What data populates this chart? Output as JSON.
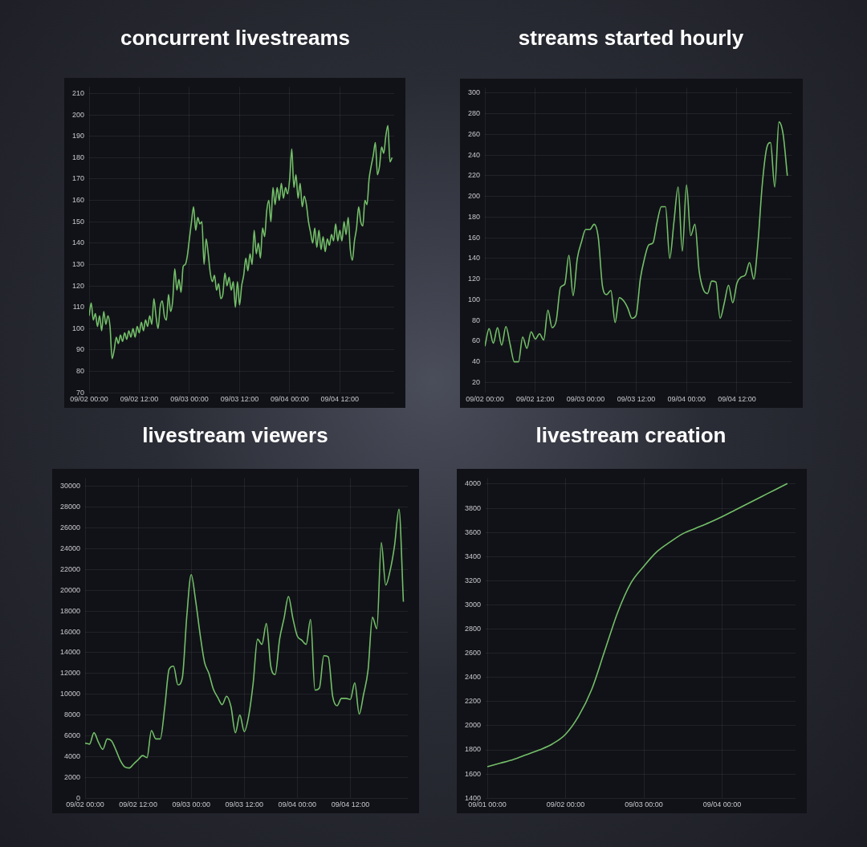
{
  "chart_data": [
    {
      "type": "line",
      "title": "concurrent livestreams",
      "grid": true,
      "x": [
        "--09-02T00:00",
        "--09-02T00:30",
        "--09-02T01:00",
        "--09-02T01:30",
        "--09-02T02:00",
        "--09-02T02:30",
        "--09-02T03:00",
        "--09-02T03:30",
        "--09-02T04:00",
        "--09-02T04:30",
        "--09-02T05:00",
        "--09-02T05:30",
        "--09-02T06:00",
        "--09-02T06:30",
        "--09-02T07:00",
        "--09-02T07:30",
        "--09-02T08:00",
        "--09-02T08:30",
        "--09-02T09:00",
        "--09-02T09:30",
        "--09-02T10:00",
        "--09-02T10:30",
        "--09-02T11:00",
        "--09-02T11:30",
        "--09-02T12:00",
        "--09-02T12:30",
        "--09-02T13:00",
        "--09-02T13:30",
        "--09-02T14:00",
        "--09-02T14:30",
        "--09-02T15:00",
        "--09-02T15:30",
        "--09-02T16:00",
        "--09-02T16:30",
        "--09-02T17:00",
        "--09-02T17:30",
        "--09-02T18:00",
        "--09-02T18:30",
        "--09-02T19:00",
        "--09-02T19:30",
        "--09-02T20:00",
        "--09-02T20:30",
        "--09-02T21:00",
        "--09-02T21:30",
        "--09-02T22:00",
        "--09-02T22:30",
        "--09-02T23:00",
        "--09-02T23:30",
        "--09-03T00:00",
        "--09-03T00:30",
        "--09-03T01:00",
        "--09-03T01:30",
        "--09-03T02:00",
        "--09-03T02:30",
        "--09-03T03:00",
        "--09-03T03:30",
        "--09-03T04:00",
        "--09-03T04:30",
        "--09-03T05:00",
        "--09-03T05:30",
        "--09-03T06:00",
        "--09-03T06:30",
        "--09-03T07:00",
        "--09-03T07:30",
        "--09-03T08:00",
        "--09-03T08:30",
        "--09-03T09:00",
        "--09-03T09:30",
        "--09-03T10:00",
        "--09-03T10:30",
        "--09-03T11:00",
        "--09-03T11:30",
        "--09-03T12:00",
        "--09-03T12:30",
        "--09-03T13:00",
        "--09-03T13:30",
        "--09-03T14:00",
        "--09-03T14:30",
        "--09-03T15:00",
        "--09-03T15:30",
        "--09-03T16:00",
        "--09-03T16:30",
        "--09-03T17:00",
        "--09-03T17:30",
        "--09-03T18:00",
        "--09-03T18:30",
        "--09-03T19:00",
        "--09-03T19:30",
        "--09-03T20:00",
        "--09-03T20:30",
        "--09-03T21:00",
        "--09-03T21:30",
        "--09-03T22:00",
        "--09-03T22:30",
        "--09-03T23:00",
        "--09-03T23:30",
        "--09-04T00:00",
        "--09-04T00:30",
        "--09-04T01:00",
        "--09-04T01:30",
        "--09-04T02:00",
        "--09-04T02:30",
        "--09-04T03:00",
        "--09-04T03:30",
        "--09-04T04:00",
        "--09-04T04:30",
        "--09-04T05:00",
        "--09-04T05:30",
        "--09-04T06:00",
        "--09-04T06:30",
        "--09-04T07:00",
        "--09-04T07:30",
        "--09-04T08:00",
        "--09-04T08:30",
        "--09-04T09:00",
        "--09-04T09:30",
        "--09-04T10:00",
        "--09-04T10:30",
        "--09-04T11:00",
        "--09-04T11:30",
        "--09-04T12:00",
        "--09-04T12:30",
        "--09-04T13:00",
        "--09-04T13:30",
        "--09-04T14:00",
        "--09-04T14:30",
        "--09-04T15:00",
        "--09-04T15:30",
        "--09-04T16:00",
        "--09-04T16:30",
        "--09-04T17:00",
        "--09-04T17:30",
        "--09-04T18:00",
        "--09-04T18:30",
        "--09-04T19:00",
        "--09-04T19:30",
        "--09-04T20:00",
        "--09-04T20:30",
        "--09-04T21:00",
        "--09-04T21:30",
        "--09-04T22:00",
        "--09-04T22:30",
        "--09-04T23:00",
        "--09-04T23:30",
        "--09-05T00:00",
        "--09-05T00:30"
      ],
      "series": [
        {
          "color": "#73bf69",
          "values": [
            106,
            112,
            104,
            107,
            101,
            106,
            99,
            108,
            102,
            106,
            101,
            86,
            90,
            96,
            93,
            97,
            94,
            98,
            95,
            99,
            96,
            100,
            96,
            101,
            98,
            103,
            99,
            104,
            101,
            106,
            102,
            114,
            106,
            100,
            110,
            113,
            106,
            104,
            116,
            108,
            113,
            128,
            118,
            123,
            117,
            129,
            130,
            134,
            142,
            150,
            157,
            146,
            152,
            149,
            150,
            130,
            142,
            135,
            126,
            122,
            125,
            118,
            121,
            114,
            116,
            126,
            120,
            124,
            118,
            122,
            110,
            122,
            111,
            120,
            125,
            133,
            127,
            135,
            130,
            146,
            135,
            140,
            133,
            147,
            143,
            155,
            160,
            150,
            166,
            158,
            166,
            160,
            168,
            161,
            166,
            163,
            170,
            184,
            166,
            172,
            161,
            168,
            157,
            162,
            158,
            150,
            145,
            140,
            147,
            138,
            146,
            137,
            143,
            136,
            142,
            139,
            144,
            141,
            149,
            141,
            146,
            141,
            150,
            144,
            152,
            137,
            132,
            141,
            147,
            157,
            150,
            148,
            160,
            158,
            170,
            176,
            181,
            187,
            172,
            176,
            185,
            182,
            190,
            195,
            178,
            180
          ]
        }
      ],
      "xlim": [
        "--09-02T00:00",
        "--09-05T01:00"
      ],
      "xticks": [
        {
          "value": "--09-02T00:00",
          "label": "09/02 00:00"
        },
        {
          "value": "--09-02T12:00",
          "label": "09/02 12:00"
        },
        {
          "value": "--09-03T00:00",
          "label": "09/03 00:00"
        },
        {
          "value": "--09-03T12:00",
          "label": "09/03 12:00"
        },
        {
          "value": "--09-04T00:00",
          "label": "09/04 00:00"
        },
        {
          "value": "--09-04T12:00",
          "label": "09/04 12:00"
        }
      ],
      "ylim": [
        70,
        213
      ],
      "yticks": [
        70,
        80,
        90,
        100,
        110,
        120,
        130,
        140,
        150,
        160,
        170,
        180,
        190,
        200,
        210
      ]
    },
    {
      "type": "line",
      "title": "streams started hourly",
      "grid": true,
      "x": [
        "--09-02T00:00",
        "--09-02T01:00",
        "--09-02T02:00",
        "--09-02T03:00",
        "--09-02T04:00",
        "--09-02T05:00",
        "--09-02T06:00",
        "--09-02T07:00",
        "--09-02T08:00",
        "--09-02T09:00",
        "--09-02T10:00",
        "--09-02T11:00",
        "--09-02T12:00",
        "--09-02T13:00",
        "--09-02T14:00",
        "--09-02T15:00",
        "--09-02T16:00",
        "--09-02T17:00",
        "--09-02T18:00",
        "--09-02T19:00",
        "--09-02T20:00",
        "--09-02T21:00",
        "--09-02T22:00",
        "--09-02T23:00",
        "--09-03T00:00",
        "--09-03T01:00",
        "--09-03T02:00",
        "--09-03T03:00",
        "--09-03T04:00",
        "--09-03T05:00",
        "--09-03T06:00",
        "--09-03T07:00",
        "--09-03T08:00",
        "--09-03T09:00",
        "--09-03T10:00",
        "--09-03T11:00",
        "--09-03T12:00",
        "--09-03T13:00",
        "--09-03T14:00",
        "--09-03T15:00",
        "--09-03T16:00",
        "--09-03T17:00",
        "--09-03T18:00",
        "--09-03T19:00",
        "--09-03T20:00",
        "--09-03T21:00",
        "--09-03T22:00",
        "--09-03T23:00",
        "--09-04T00:00",
        "--09-04T01:00",
        "--09-04T02:00",
        "--09-04T03:00",
        "--09-04T04:00",
        "--09-04T05:00",
        "--09-04T06:00",
        "--09-04T07:00",
        "--09-04T08:00",
        "--09-04T09:00",
        "--09-04T10:00",
        "--09-04T11:00",
        "--09-04T12:00",
        "--09-04T13:00",
        "--09-04T14:00",
        "--09-04T15:00",
        "--09-04T16:00",
        "--09-04T17:00",
        "--09-04T18:00",
        "--09-04T19:00",
        "--09-04T20:00",
        "--09-04T21:00",
        "--09-04T22:00",
        "--09-04T23:00",
        "--09-05T00:00"
      ],
      "series": [
        {
          "color": "#73bf69",
          "values": [
            55,
            72,
            58,
            73,
            56,
            74,
            57,
            40,
            40,
            64,
            53,
            69,
            62,
            67,
            61,
            90,
            73,
            80,
            112,
            115,
            143,
            104,
            140,
            156,
            168,
            168,
            173,
            160,
            113,
            105,
            109,
            78,
            102,
            99,
            92,
            82,
            85,
            120,
            140,
            153,
            155,
            175,
            190,
            190,
            140,
            175,
            209,
            147,
            211,
            162,
            173,
            128,
            110,
            106,
            118,
            117,
            82,
            97,
            114,
            97,
            116,
            122,
            124,
            136,
            120,
            155,
            210,
            245,
            252,
            209,
            272,
            260,
            220
          ]
        }
      ],
      "xlim": [
        "--09-02T00:00",
        "--09-05T01:00"
      ],
      "xticks": [
        {
          "value": "--09-02T00:00",
          "label": "09/02 00:00"
        },
        {
          "value": "--09-02T12:00",
          "label": "09/02 12:00"
        },
        {
          "value": "--09-03T00:00",
          "label": "09/03 00:00"
        },
        {
          "value": "--09-03T12:00",
          "label": "09/03 12:00"
        },
        {
          "value": "--09-04T00:00",
          "label": "09/04 00:00"
        },
        {
          "value": "--09-04T12:00",
          "label": "09/04 12:00"
        }
      ],
      "ylim": [
        10,
        305
      ],
      "yticks": [
        20,
        40,
        60,
        80,
        100,
        120,
        140,
        160,
        180,
        200,
        220,
        240,
        260,
        280,
        300
      ]
    },
    {
      "type": "line",
      "title": "livestream viewers",
      "grid": true,
      "x": [
        "--09-02T00:00",
        "--09-02T01:00",
        "--09-02T02:00",
        "--09-02T03:00",
        "--09-02T04:00",
        "--09-02T05:00",
        "--09-02T06:00",
        "--09-02T07:00",
        "--09-02T08:00",
        "--09-02T09:00",
        "--09-02T10:00",
        "--09-02T11:00",
        "--09-02T12:00",
        "--09-02T13:00",
        "--09-02T14:00",
        "--09-02T15:00",
        "--09-02T16:00",
        "--09-02T17:00",
        "--09-02T18:00",
        "--09-02T19:00",
        "--09-02T20:00",
        "--09-02T21:00",
        "--09-02T22:00",
        "--09-02T23:00",
        "--09-03T00:00",
        "--09-03T01:00",
        "--09-03T02:00",
        "--09-03T03:00",
        "--09-03T04:00",
        "--09-03T05:00",
        "--09-03T06:00",
        "--09-03T07:00",
        "--09-03T08:00",
        "--09-03T09:00",
        "--09-03T10:00",
        "--09-03T11:00",
        "--09-03T12:00",
        "--09-03T13:00",
        "--09-03T14:00",
        "--09-03T15:00",
        "--09-03T16:00",
        "--09-03T17:00",
        "--09-03T18:00",
        "--09-03T19:00",
        "--09-03T20:00",
        "--09-03T21:00",
        "--09-03T22:00",
        "--09-03T23:00",
        "--09-04T00:00",
        "--09-04T01:00",
        "--09-04T02:00",
        "--09-04T03:00",
        "--09-04T04:00",
        "--09-04T05:00",
        "--09-04T06:00",
        "--09-04T07:00",
        "--09-04T08:00",
        "--09-04T09:00",
        "--09-04T10:00",
        "--09-04T11:00",
        "--09-04T12:00",
        "--09-04T13:00",
        "--09-04T14:00",
        "--09-04T15:00",
        "--09-04T16:00",
        "--09-04T17:00",
        "--09-04T18:00",
        "--09-04T19:00",
        "--09-04T20:00",
        "--09-04T21:00",
        "--09-04T22:00",
        "--09-04T23:00",
        "--09-05T00:00"
      ],
      "series": [
        {
          "color": "#73bf69",
          "values": [
            5300,
            5200,
            6300,
            5400,
            4700,
            5700,
            5500,
            4600,
            3600,
            3000,
            2900,
            3300,
            3700,
            4100,
            3900,
            6500,
            5700,
            5700,
            8700,
            12400,
            12700,
            10900,
            11600,
            17500,
            21500,
            19000,
            15800,
            13100,
            12000,
            10500,
            9700,
            9000,
            9800,
            8800,
            6300,
            8000,
            6400,
            7900,
            11000,
            15300,
            14800,
            16800,
            12700,
            11900,
            15300,
            17300,
            19400,
            17300,
            15600,
            15200,
            14800,
            17200,
            10400,
            10600,
            13700,
            13600,
            9800,
            8900,
            9600,
            9600,
            9500,
            11100,
            8100,
            10000,
            12300,
            17400,
            16300,
            24600,
            20500,
            21900,
            24300,
            27800,
            18900
          ]
        }
      ],
      "xlim": [
        "--09-02T00:00",
        "--09-05T01:00"
      ],
      "xticks": [
        {
          "value": "--09-02T00:00",
          "label": "09/02 00:00"
        },
        {
          "value": "--09-02T12:00",
          "label": "09/02 12:00"
        },
        {
          "value": "--09-03T00:00",
          "label": "09/03 00:00"
        },
        {
          "value": "--09-03T12:00",
          "label": "09/03 12:00"
        },
        {
          "value": "--09-04T00:00",
          "label": "09/04 00:00"
        },
        {
          "value": "--09-04T12:00",
          "label": "09/04 12:00"
        }
      ],
      "ylim": [
        0,
        30800
      ],
      "yticks": [
        0,
        2000,
        4000,
        6000,
        8000,
        10000,
        12000,
        14000,
        16000,
        18000,
        20000,
        22000,
        24000,
        26000,
        28000,
        30000
      ]
    },
    {
      "type": "line",
      "title": "livestream creation",
      "grid": true,
      "x": [
        "--09-01T00:00",
        "--09-01T04:00",
        "--09-01T08:00",
        "--09-01T12:00",
        "--09-01T16:00",
        "--09-01T20:00",
        "--09-02T00:00",
        "--09-02T04:00",
        "--09-02T08:00",
        "--09-02T12:00",
        "--09-02T16:00",
        "--09-02T20:00",
        "--09-03T00:00",
        "--09-03T04:00",
        "--09-03T08:00",
        "--09-03T12:00",
        "--09-03T16:00",
        "--09-03T20:00",
        "--09-04T00:00",
        "--09-04T04:00",
        "--09-04T08:00",
        "--09-04T12:00",
        "--09-04T16:00",
        "--09-04T20:00"
      ],
      "series": [
        {
          "color": "#73bf69",
          "values": [
            1660,
            1690,
            1720,
            1760,
            1800,
            1850,
            1930,
            2080,
            2300,
            2620,
            2940,
            3180,
            3320,
            3440,
            3520,
            3590,
            3635,
            3680,
            3730,
            3785,
            3840,
            3895,
            3950,
            4005
          ]
        }
      ],
      "xlim": [
        "--08-31T23:30",
        "--09-04T22:30"
      ],
      "xticks": [
        {
          "value": "--09-01T00:00",
          "label": "09/01 00:00"
        },
        {
          "value": "--09-02T00:00",
          "label": "09/02 00:00"
        },
        {
          "value": "--09-03T00:00",
          "label": "09/03 00:00"
        },
        {
          "value": "--09-04T00:00",
          "label": "09/04 00:00"
        }
      ],
      "ylim": [
        1400,
        4050
      ],
      "yticks": [
        1400,
        1600,
        1800,
        2000,
        2200,
        2400,
        2600,
        2800,
        3000,
        3200,
        3400,
        3600,
        3800,
        4000
      ]
    }
  ]
}
